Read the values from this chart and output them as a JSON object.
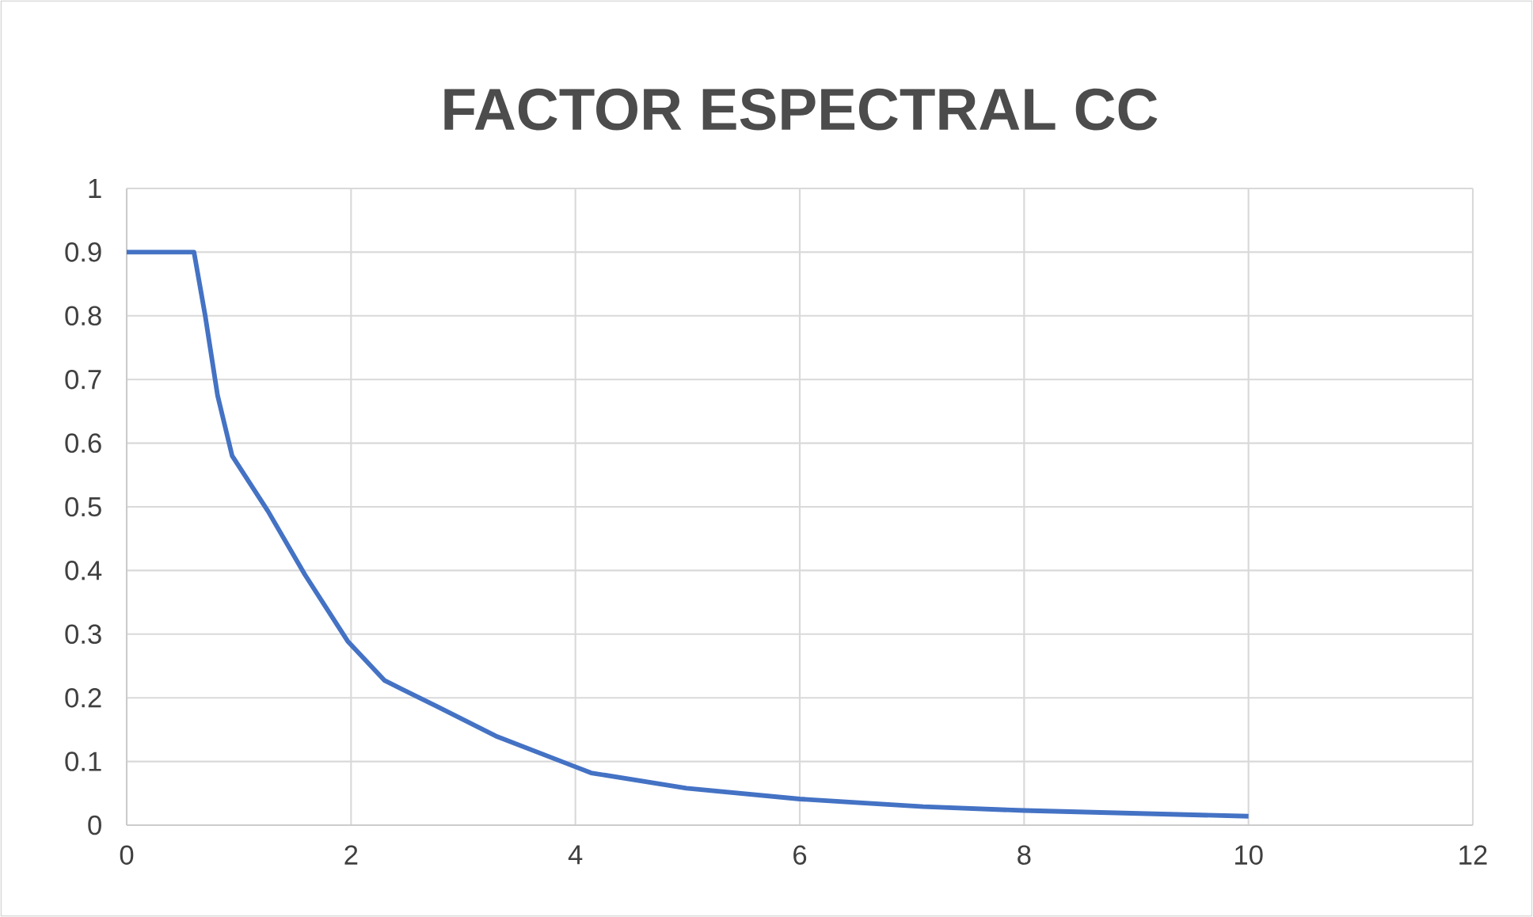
{
  "chart_data": {
    "type": "line",
    "title": "FACTOR ESPECTRAL CC",
    "series": [
      {
        "color": "#4472c4",
        "x": [
          0,
          0.6,
          0.7,
          0.81,
          0.94,
          1.26,
          1.59,
          1.97,
          2.3,
          2.77,
          3.29,
          3.95,
          4.14,
          4.99,
          6,
          7.1,
          8,
          10
        ],
        "values": [
          0.9,
          0.9,
          0.8,
          0.675,
          0.58,
          0.493,
          0.393,
          0.289,
          0.227,
          0.186,
          0.14,
          0.095,
          0.082,
          0.058,
          0.041,
          0.029,
          0.023,
          0.014
        ]
      }
    ],
    "xlim": [
      0,
      12
    ],
    "ylim": [
      0,
      1
    ],
    "xticks": [
      0,
      2,
      4,
      6,
      8,
      10,
      12
    ],
    "yticks": [
      0,
      0.1,
      0.2,
      0.3,
      0.4,
      0.5,
      0.6,
      0.7,
      0.8,
      0.9,
      1
    ],
    "grid": true,
    "marker": "none",
    "line_style": "solid"
  }
}
